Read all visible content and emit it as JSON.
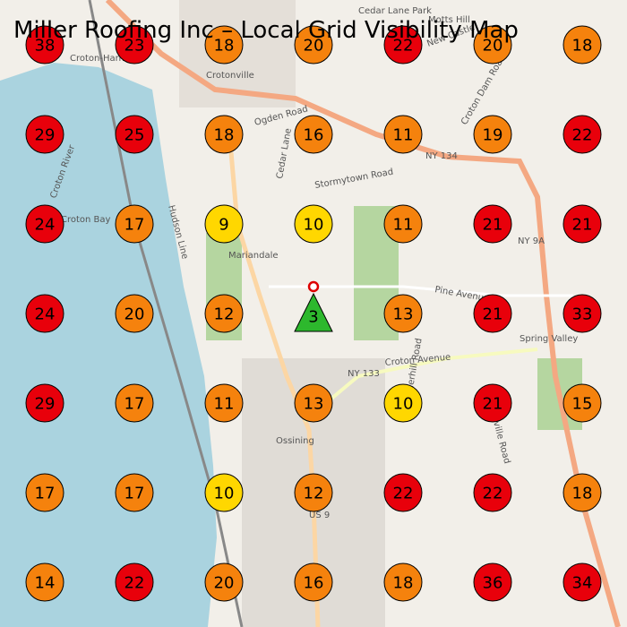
{
  "title": "Miller Roofing Inc – Local Grid Visibility Map",
  "grid": {
    "rows": [
      [
        38,
        23,
        18,
        20,
        22,
        20,
        18
      ],
      [
        29,
        25,
        18,
        16,
        11,
        19,
        22
      ],
      [
        24,
        17,
        9,
        10,
        11,
        21,
        21
      ],
      [
        24,
        20,
        12,
        3,
        13,
        21,
        33
      ],
      [
        29,
        17,
        11,
        13,
        10,
        21,
        15
      ],
      [
        17,
        17,
        10,
        12,
        22,
        22,
        18
      ],
      [
        14,
        22,
        20,
        16,
        18,
        36,
        34
      ]
    ],
    "colors": [
      [
        "#e8000b",
        "#e8000b",
        "#f5820d",
        "#f5820d",
        "#e8000b",
        "#f5820d",
        "#f5820d"
      ],
      [
        "#e8000b",
        "#e8000b",
        "#f5820d",
        "#f5820d",
        "#f5820d",
        "#f5820d",
        "#e8000b"
      ],
      [
        "#e8000b",
        "#f5820d",
        "#ffd700",
        "#ffd700",
        "#f5820d",
        "#e8000b",
        "#e8000b"
      ],
      [
        "#e8000b",
        "#f5820d",
        "#f5820d",
        "#2db82d",
        "#f5820d",
        "#e8000b",
        "#e8000b"
      ],
      [
        "#e8000b",
        "#f5820d",
        "#f5820d",
        "#f5820d",
        "#ffd700",
        "#e8000b",
        "#f5820d"
      ],
      [
        "#f5820d",
        "#f5820d",
        "#ffd700",
        "#f5820d",
        "#e8000b",
        "#e8000b",
        "#f5820d"
      ],
      [
        "#f5820d",
        "#e8000b",
        "#f5820d",
        "#f5820d",
        "#f5820d",
        "#e8000b",
        "#e8000b"
      ]
    ],
    "business_cell": {
      "row": 3,
      "col": 3
    }
  },
  "map_labels": [
    "Croton-Harmon",
    "Crotonville",
    "Ossining",
    "Mariandale",
    "Croton River",
    "Croton Bay",
    "Hudson Line",
    "Ogden Road",
    "Stormytown Road",
    "Cedar Lane",
    "NY 134",
    "NY 133",
    "NY 9A",
    "Croton Avenue",
    "Pine Avenue",
    "Spring Valley",
    "Croton Dam Road",
    "Pleasantville Road",
    "Underhill Road",
    "Cedar Lane Park",
    "Motts Hill",
    "New Castle",
    "US 9"
  ]
}
